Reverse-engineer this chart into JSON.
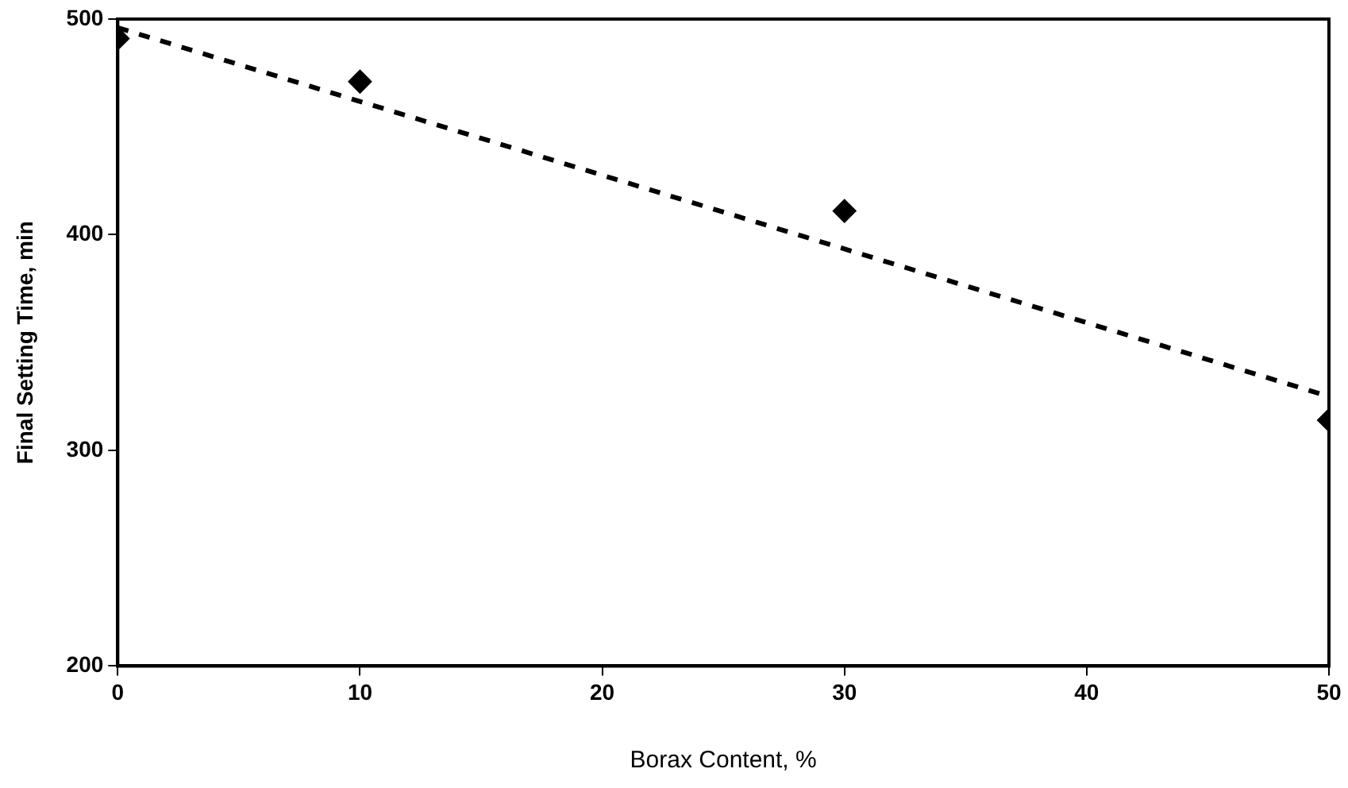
{
  "chart_data": {
    "type": "scatter",
    "xlabel": "Borax Content, %",
    "ylabel": "Final Setting Time, min",
    "series": [
      {
        "color": "#000000",
        "marker": "diamond",
        "x": [
          0,
          10,
          30,
          50
        ],
        "values": [
          491,
          471,
          411,
          314
        ]
      },
      {
        "type": "line",
        "color": "#000000",
        "marker": "none",
        "line_style": "dashed",
        "x": [
          0,
          50
        ],
        "values": [
          496,
          325
        ]
      }
    ],
    "xlim": [
      0,
      50
    ],
    "xticks": [
      0,
      10,
      20,
      30,
      40,
      50
    ],
    "ylim": [
      200,
      500
    ],
    "yticks": [
      200,
      300,
      400,
      500
    ],
    "grid": false,
    "legend": false
  }
}
